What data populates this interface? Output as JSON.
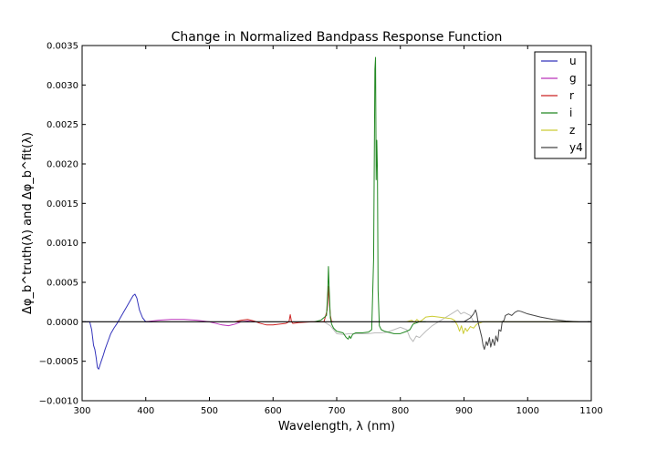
{
  "chart_data": {
    "type": "line",
    "title": "Change in Normalized Bandpass Response Function",
    "xlabel": "Wavelength, λ (nm)",
    "ylabel": "Δφ_b^truth(λ) and Δφ_b^fit(λ)",
    "xlim": [
      300,
      1100
    ],
    "ylim": [
      -0.001,
      0.0035
    ],
    "xticks": [
      "300",
      "400",
      "500",
      "600",
      "700",
      "800",
      "900",
      "1000",
      "1100"
    ],
    "yticks": [
      "−0.0010",
      "−0.0005",
      "0.0000",
      "0.0005",
      "0.0010",
      "0.0015",
      "0.0020",
      "0.0025",
      "0.0030",
      "0.0035"
    ],
    "grid": false,
    "legend_position": "top-right",
    "series": [
      {
        "name": "u",
        "color": "#3333bb",
        "x": [
          305,
          312,
          315,
          318,
          320,
          322,
          324,
          326,
          328,
          330,
          333,
          336,
          340,
          345,
          350,
          355,
          360,
          365,
          370,
          375,
          380,
          383,
          386,
          390,
          395,
          400,
          405,
          410
        ],
        "y": [
          0.0,
          0.0,
          -0.0001,
          -0.0003,
          -0.00035,
          -0.00045,
          -0.00058,
          -0.0006,
          -0.00055,
          -0.0005,
          -0.00043,
          -0.00035,
          -0.00026,
          -0.00015,
          -8e-05,
          -2e-05,
          5e-05,
          0.00012,
          0.00019,
          0.00026,
          0.00033,
          0.00035,
          0.0003,
          0.00015,
          5e-05,
          0.0,
          0.0,
          0.0
        ]
      },
      {
        "name": "g",
        "color": "#bb33bb",
        "x": [
          400,
          410,
          420,
          440,
          460,
          480,
          500,
          510,
          520,
          530,
          540,
          550,
          560,
          570
        ],
        "y": [
          0.0,
          1e-05,
          2e-05,
          3e-05,
          3e-05,
          2e-05,
          0.0,
          -2e-05,
          -4e-05,
          -5e-05,
          -3e-05,
          0.0,
          1e-05,
          0.0
        ]
      },
      {
        "name": "r",
        "color": "#cc2222",
        "x": [
          540,
          550,
          560,
          570,
          580,
          590,
          600,
          610,
          620,
          625,
          627,
          629,
          631,
          640,
          660,
          680,
          685,
          687,
          688,
          690,
          692,
          695
        ],
        "y": [
          0.0,
          2e-05,
          3e-05,
          1e-05,
          -2e-05,
          -4e-05,
          -4e-05,
          -3e-05,
          -2e-05,
          0.0,
          9e-05,
          0.0,
          -2e-05,
          -1e-05,
          0.0,
          0.0,
          0.00015,
          0.00045,
          0.0003,
          8e-05,
          0.0,
          0.0
        ]
      },
      {
        "name": "i",
        "color": "#228822",
        "x": [
          665,
          675,
          684,
          686,
          687,
          688,
          689,
          690,
          692,
          695,
          700,
          710,
          715,
          718,
          720,
          722,
          725,
          730,
          740,
          750,
          755,
          758,
          760,
          761,
          762,
          763,
          764,
          765,
          767,
          770,
          775,
          780,
          790,
          800,
          810,
          815,
          820,
          830,
          840
        ],
        "y": [
          0.0,
          2e-05,
          8e-05,
          0.0004,
          0.0007,
          0.00045,
          0.00025,
          5e-05,
          -3e-05,
          -8e-05,
          -0.00012,
          -0.00014,
          -0.0002,
          -0.00022,
          -0.00018,
          -0.00021,
          -0.00016,
          -0.00014,
          -0.00014,
          -0.00013,
          -0.0001,
          0.0008,
          0.0032,
          0.00335,
          0.0018,
          0.0023,
          0.0019,
          0.0004,
          -5e-05,
          -0.0001,
          -0.00012,
          -0.00013,
          -0.00015,
          -0.00015,
          -0.00012,
          -0.0001,
          -3e-05,
          0.0,
          0.0
        ]
      },
      {
        "name": "z",
        "color": "#cccc33",
        "x": [
          810,
          818,
          822,
          826,
          830,
          834,
          840,
          850,
          860,
          870,
          880,
          885,
          890,
          893,
          896,
          899,
          902,
          905,
          910,
          915,
          920,
          930,
          940,
          950,
          980,
          1000,
          1050,
          1080
        ],
        "y": [
          0.0,
          2e-05,
          -1e-05,
          3e-05,
          0.0,
          2e-05,
          6e-05,
          7e-05,
          6e-05,
          5e-05,
          4e-05,
          2e-05,
          -5e-05,
          -0.00012,
          -5e-05,
          -0.00015,
          -8e-05,
          -0.00012,
          -6e-05,
          -8e-05,
          -3e-05,
          0.0,
          0.0,
          0.0,
          0.0,
          0.0,
          0.0,
          0.0
        ]
      },
      {
        "name": "y4",
        "color": "#444444",
        "x": [
          880,
          900,
          910,
          915,
          918,
          920,
          922,
          925,
          928,
          930,
          932,
          935,
          937,
          940,
          942,
          945,
          948,
          950,
          953,
          955,
          958,
          960,
          963,
          965,
          970,
          975,
          980,
          985,
          990,
          1000,
          1020,
          1040,
          1060,
          1080,
          1100
        ],
        "y": [
          0.0,
          0.0,
          5e-05,
          0.0001,
          0.00015,
          0.0001,
          0.0,
          -0.0001,
          -0.0002,
          -0.0003,
          -0.00035,
          -0.00025,
          -0.0003,
          -0.0002,
          -0.00032,
          -0.00022,
          -0.0003,
          -0.00018,
          -0.00025,
          -0.0001,
          -0.00012,
          0.0,
          2e-05,
          8e-05,
          0.0001,
          8e-05,
          0.00012,
          0.00014,
          0.00013,
          0.0001,
          6e-05,
          3e-05,
          1e-05,
          0.0,
          0.0
        ]
      },
      {
        "name": "",
        "color": "#bbbbbb",
        "legend": false,
        "x": [
          680,
          690,
          700,
          710,
          720,
          730,
          740,
          750,
          760,
          770,
          780,
          790,
          800,
          810,
          815,
          820,
          825,
          830,
          840,
          850,
          860,
          870,
          880,
          890,
          895,
          900,
          905,
          910,
          915,
          920
        ],
        "y": [
          0.0,
          -5e-05,
          -0.00015,
          -0.00016,
          -0.00015,
          -0.00015,
          -0.00015,
          -0.00015,
          -0.00014,
          -0.00014,
          -0.00013,
          -0.0001,
          -7e-05,
          -0.0001,
          -0.0002,
          -0.00025,
          -0.00018,
          -0.0002,
          -0.00012,
          -5e-05,
          0.0,
          5e-05,
          0.0001,
          0.00015,
          0.0001,
          0.00012,
          0.0001,
          8e-05,
          0.0,
          0.0
        ]
      }
    ]
  }
}
